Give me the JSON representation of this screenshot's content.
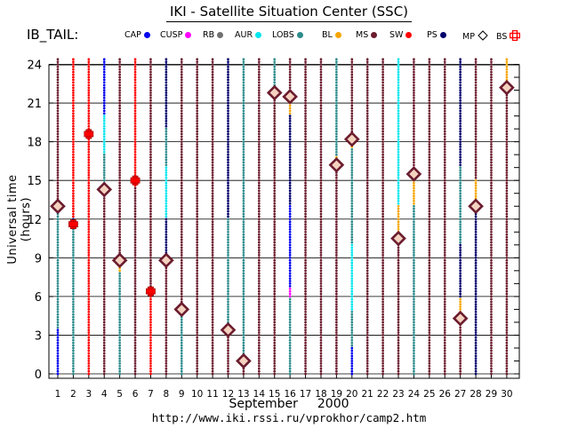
{
  "title": "IKI - Satellite Situation Center (SSC)",
  "region": "IB_TAIL:",
  "url": "http://www.iki.rssi.ru/vprokhor/camp2.htm",
  "legend": [
    {
      "label": "CAP",
      "color": "#0000ee",
      "shape": "dot"
    },
    {
      "label": "CUSP",
      "color": "#ff00ff",
      "shape": "dot"
    },
    {
      "label": "RB",
      "color": "#707070",
      "shape": "dot"
    },
    {
      "label": "AUR",
      "color": "#00e5ee",
      "shape": "dot"
    },
    {
      "label": "LOBS",
      "color": "#2e8b8b",
      "shape": "dot"
    },
    {
      "label": "BL",
      "color": "#f5a500",
      "shape": "dot"
    },
    {
      "label": "MS",
      "color": "#6b1c2e",
      "shape": "dot"
    },
    {
      "label": "SW",
      "color": "#ff0000",
      "shape": "dot"
    },
    {
      "label": "PS",
      "color": "#00006b",
      "shape": "dot"
    },
    {
      "label": "MP",
      "color": "#000000",
      "shape": "diamond"
    },
    {
      "label": "BS",
      "color": "#ff0000",
      "shape": "crossbox"
    }
  ],
  "chart_data": {
    "type": "scatter",
    "title": "IKI - Satellite Situation Center (SSC)",
    "xlabel_month": "September",
    "xlabel_year": "2000",
    "ylabel": "Universal time (hours)",
    "x": [
      1,
      2,
      3,
      4,
      5,
      6,
      7,
      8,
      9,
      10,
      11,
      12,
      13,
      14,
      15,
      16,
      17,
      18,
      19,
      20,
      21,
      22,
      23,
      24,
      25,
      26,
      27,
      28,
      29,
      30
    ],
    "xlim": [
      0.6,
      31.0
    ],
    "ylim": [
      -0.5,
      24.8
    ],
    "yticks": [
      0,
      3,
      6,
      9,
      12,
      15,
      18,
      21,
      24
    ],
    "grid": "horizontal lines every 3 hours",
    "days": [
      {
        "day": 1,
        "segments": [
          [
            "CAP",
            0,
            3.5
          ],
          [
            "LOBS",
            3.5,
            12.5
          ],
          [
            "BL",
            12.5,
            13.5
          ],
          [
            "MS",
            13.5,
            24.5
          ]
        ],
        "mp": [
          13.0
        ],
        "bs": []
      },
      {
        "day": 2,
        "segments": [
          [
            "LOBS",
            0,
            11.5
          ],
          [
            "PS",
            11.5,
            12
          ],
          [
            "SW",
            12,
            24.5
          ]
        ],
        "mp": [],
        "bs": [
          11.6
        ]
      },
      {
        "day": 3,
        "segments": [
          [
            "SW",
            0,
            24.5
          ]
        ],
        "mp": [],
        "bs": [
          18.6
        ]
      },
      {
        "day": 4,
        "segments": [
          [
            "MS",
            0,
            14
          ],
          [
            "LOBS",
            14,
            17
          ],
          [
            "AUR",
            17,
            20
          ],
          [
            "CAP",
            20,
            24.5
          ]
        ],
        "mp": [
          14.3
        ],
        "bs": []
      },
      {
        "day": 5,
        "segments": [
          [
            "LOBS",
            0,
            8
          ],
          [
            "BL",
            8,
            9
          ],
          [
            "MS",
            9,
            24.5
          ]
        ],
        "mp": [
          8.8
        ],
        "bs": []
      },
      {
        "day": 6,
        "segments": [
          [
            "MS",
            0,
            14.5
          ],
          [
            "SW",
            14.5,
            24.5
          ]
        ],
        "mp": [],
        "bs": [
          15.0
        ]
      },
      {
        "day": 7,
        "segments": [
          [
            "SW",
            0,
            6.5
          ],
          [
            "MS",
            6.5,
            24.5
          ]
        ],
        "mp": [],
        "bs": [
          6.4
        ]
      },
      {
        "day": 8,
        "segments": [
          [
            "MS",
            0,
            8.5
          ],
          [
            "BL",
            8.5,
            9.2
          ],
          [
            "PS",
            9.2,
            12
          ],
          [
            "AUR",
            12,
            16
          ],
          [
            "LOBS",
            16,
            19
          ],
          [
            "PS",
            19,
            24.5
          ]
        ],
        "mp": [
          8.8
        ],
        "bs": []
      },
      {
        "day": 9,
        "segments": [
          [
            "LOBS",
            0,
            4.8
          ],
          [
            "BL",
            4.8,
            5.3
          ],
          [
            "MS",
            5.3,
            24.5
          ]
        ],
        "mp": [
          5.0
        ],
        "bs": []
      },
      {
        "day": 10,
        "segments": [
          [
            "MS",
            0,
            24.5
          ]
        ],
        "mp": [],
        "bs": []
      },
      {
        "day": 11,
        "segments": [
          [
            "MS",
            0,
            24.5
          ]
        ],
        "mp": [],
        "bs": []
      },
      {
        "day": 12,
        "segments": [
          [
            "MS",
            0,
            3.2
          ],
          [
            "BL",
            3.2,
            3.8
          ],
          [
            "LOBS",
            3.8,
            12
          ],
          [
            "PS",
            12,
            24.5
          ]
        ],
        "mp": [
          3.4
        ],
        "bs": []
      },
      {
        "day": 13,
        "segments": [
          [
            "MS",
            0,
            1.0
          ],
          [
            "BL",
            1.0,
            1.3
          ],
          [
            "LOBS",
            1.3,
            24.5
          ]
        ],
        "mp": [
          1.0
        ],
        "bs": []
      },
      {
        "day": 14,
        "segments": [
          [
            "MS",
            0,
            24.5
          ]
        ],
        "mp": [],
        "bs": []
      },
      {
        "day": 15,
        "segments": [
          [
            "MS",
            0,
            21.5
          ],
          [
            "BL",
            21.5,
            22.3
          ],
          [
            "LOBS",
            22.3,
            24.5
          ]
        ],
        "mp": [
          21.8
        ],
        "bs": []
      },
      {
        "day": 16,
        "segments": [
          [
            "LOBS",
            0,
            6
          ],
          [
            "CUSP",
            6,
            6.8
          ],
          [
            "CAP",
            6.8,
            13
          ],
          [
            "PS",
            13,
            20
          ],
          [
            "BL",
            20,
            21.2
          ],
          [
            "MS",
            21.2,
            24.5
          ]
        ],
        "mp": [
          21.5
        ],
        "bs": []
      },
      {
        "day": 17,
        "segments": [
          [
            "MS",
            0,
            24.5
          ]
        ],
        "mp": [],
        "bs": []
      },
      {
        "day": 18,
        "segments": [
          [
            "MS",
            0,
            24.5
          ]
        ],
        "mp": [],
        "bs": []
      },
      {
        "day": 19,
        "segments": [
          [
            "MS",
            0,
            16.2
          ],
          [
            "BL",
            16.2,
            16.8
          ],
          [
            "LOBS",
            16.8,
            24.5
          ]
        ],
        "mp": [
          16.2
        ],
        "bs": []
      },
      {
        "day": 20,
        "segments": [
          [
            "CAP",
            0,
            2
          ],
          [
            "LOBS",
            2,
            5
          ],
          [
            "AUR",
            5,
            10
          ],
          [
            "LOBS",
            10,
            17.5
          ],
          [
            "BL",
            17.5,
            18.5
          ],
          [
            "MS",
            18.5,
            24.5
          ]
        ],
        "mp": [
          18.2
        ],
        "bs": []
      },
      {
        "day": 21,
        "segments": [
          [
            "MS",
            0,
            24.5
          ]
        ],
        "mp": [],
        "bs": []
      },
      {
        "day": 22,
        "segments": [
          [
            "MS",
            0,
            24.5
          ]
        ],
        "mp": [],
        "bs": []
      },
      {
        "day": 23,
        "segments": [
          [
            "MS",
            0,
            10
          ],
          [
            "BL",
            10,
            13
          ],
          [
            "AUR",
            13,
            24.5
          ]
        ],
        "mp": [
          10.5
        ],
        "bs": []
      },
      {
        "day": 24,
        "segments": [
          [
            "LOBS",
            0,
            13
          ],
          [
            "BL",
            13,
            15.6
          ],
          [
            "MS",
            15.6,
            24.5
          ]
        ],
        "mp": [
          15.5
        ],
        "bs": []
      },
      {
        "day": 25,
        "segments": [
          [
            "MS",
            0,
            24.5
          ]
        ],
        "mp": [],
        "bs": []
      },
      {
        "day": 26,
        "segments": [
          [
            "MS",
            0,
            24.5
          ]
        ],
        "mp": [],
        "bs": []
      },
      {
        "day": 27,
        "segments": [
          [
            "MS",
            0,
            4.3
          ],
          [
            "BL",
            4.3,
            6
          ],
          [
            "PS",
            6,
            10
          ],
          [
            "LOBS",
            10,
            16
          ],
          [
            "PS",
            16,
            24.5
          ]
        ],
        "mp": [
          4.3
        ],
        "bs": []
      },
      {
        "day": 28,
        "segments": [
          [
            "PS",
            0,
            12.5
          ],
          [
            "BL",
            12.5,
            15
          ],
          [
            "MS",
            15,
            24.5
          ]
        ],
        "mp": [
          13.0
        ],
        "bs": []
      },
      {
        "day": 29,
        "segments": [
          [
            "MS",
            0,
            24.5
          ]
        ],
        "mp": [],
        "bs": []
      },
      {
        "day": 30,
        "segments": [
          [
            "MS",
            0,
            21.8
          ],
          [
            "BL",
            21.8,
            24.5
          ]
        ],
        "mp": [
          22.2
        ],
        "bs": []
      }
    ]
  }
}
